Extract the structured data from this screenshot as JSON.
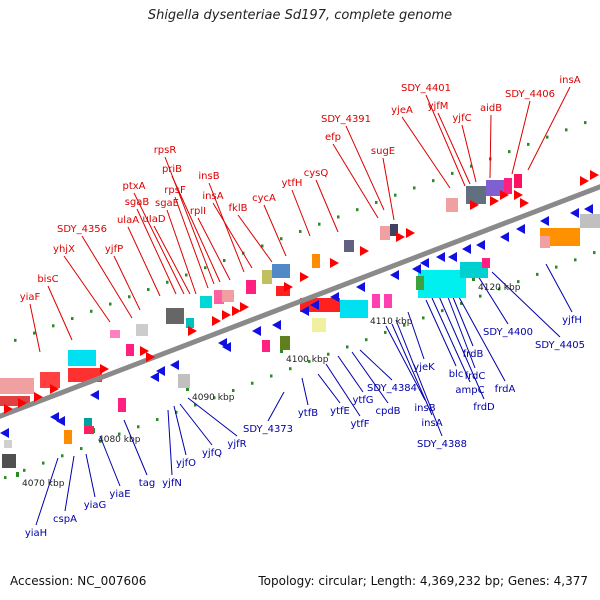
{
  "title": "Shigella dysenteriae Sd197, complete genome",
  "footer": {
    "accession": "Accession: NC_007606",
    "summary": "Topology: circular; Length: 4,369,232 bp; Genes: 4,377"
  },
  "colors": {
    "top_label": "#dd0000",
    "bottom_label": "#0000aa",
    "backbone": "#8a8a8a",
    "tick": "#2a8a2a"
  },
  "kbp_ticks": [
    "4070 kbp",
    "4080 kbp",
    "4090 kbp",
    "4100 kbp",
    "4110 kbp",
    "4120 kbp"
  ],
  "top_genes": [
    "yiaF",
    "bisC",
    "yhjX",
    "SDY_4356",
    "yjfP",
    "ulaA",
    "sgaB",
    "ptxA",
    "uIaD",
    "sgaE",
    "rpsF",
    "rpsR",
    "priB",
    "rplI",
    "insB",
    "insA",
    "fklB",
    "cycA",
    "ytfH",
    "cysQ",
    "efp",
    "SDY_4391",
    "sugE",
    "yjeA",
    "SDY_4401",
    "yjfM",
    "yjfC",
    "aidB",
    "SDY_4406",
    "insA"
  ],
  "bottom_genes": [
    "yiaH",
    "cspA",
    "yiaG",
    "yiaE",
    "tag",
    "yjfN",
    "yjfO",
    "yjfQ",
    "yjfR",
    "SDY_4373",
    "ytfB",
    "ytfE",
    "ytfF",
    "ytfG",
    "cpdB",
    "SDY_4384",
    "insB",
    "insA",
    "SDY_4388",
    "yjeK",
    "blc",
    "ampC",
    "frdD",
    "frdC",
    "frdB",
    "frdA",
    "SDY_4400",
    "SDY_4405",
    "yjfH"
  ]
}
